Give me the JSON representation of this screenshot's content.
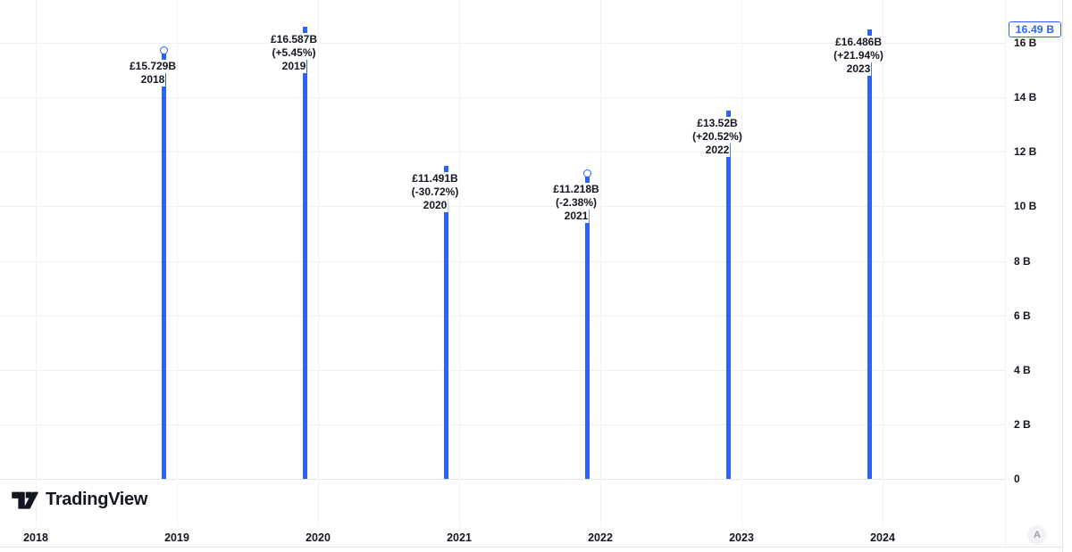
{
  "chart_data": {
    "type": "bar",
    "title": "",
    "categories": [
      "2018",
      "2019",
      "2020",
      "2021",
      "2022",
      "2023"
    ],
    "values": [
      15.729,
      16.587,
      11.491,
      11.218,
      13.52,
      16.486
    ],
    "unit": "GBP billions",
    "point_labels": [
      {
        "value_text": "£15.729B",
        "pct_text": "",
        "year": "2018",
        "marker": true
      },
      {
        "value_text": "£16.587B",
        "pct_text": "(+5.45%)",
        "year": "2019",
        "marker": false
      },
      {
        "value_text": "£11.491B",
        "pct_text": "(-30.72%)",
        "year": "2020",
        "marker": false
      },
      {
        "value_text": "£11.218B",
        "pct_text": "(-2.38%)",
        "year": "2021",
        "marker": true
      },
      {
        "value_text": "£13.52B",
        "pct_text": "(+20.52%)",
        "year": "2022",
        "marker": false
      },
      {
        "value_text": "£16.486B",
        "pct_text": "(+21.94%)",
        "year": "2023",
        "marker": false
      }
    ],
    "y_axis": {
      "ticks": [
        {
          "value": 16,
          "label": "16 B"
        },
        {
          "value": 14,
          "label": "14 B"
        },
        {
          "value": 12,
          "label": "12 B"
        },
        {
          "value": 10,
          "label": "10 B"
        },
        {
          "value": 8,
          "label": "8 B"
        },
        {
          "value": 6,
          "label": "6 B"
        },
        {
          "value": 4,
          "label": "4 B"
        },
        {
          "value": 2,
          "label": "2 B"
        },
        {
          "value": 0,
          "label": "0"
        }
      ],
      "range": [
        0,
        16.587
      ],
      "position": "right"
    },
    "x_axis": {
      "ticks": [
        "2018",
        "2019",
        "2020",
        "2021",
        "2022",
        "2023",
        "2024"
      ]
    },
    "last_value_badge": {
      "text": "16.49 B",
      "value": 16.49
    },
    "colors": {
      "bar": "#2962FF",
      "grid": "#EFEFEF",
      "axis_text": "#131722",
      "badge_text": "#2962FF",
      "badge_border": "#2962FF"
    },
    "grid": true,
    "legend": "none"
  },
  "footer": {
    "logo_text": "TradingView",
    "corner_badge": "A"
  }
}
